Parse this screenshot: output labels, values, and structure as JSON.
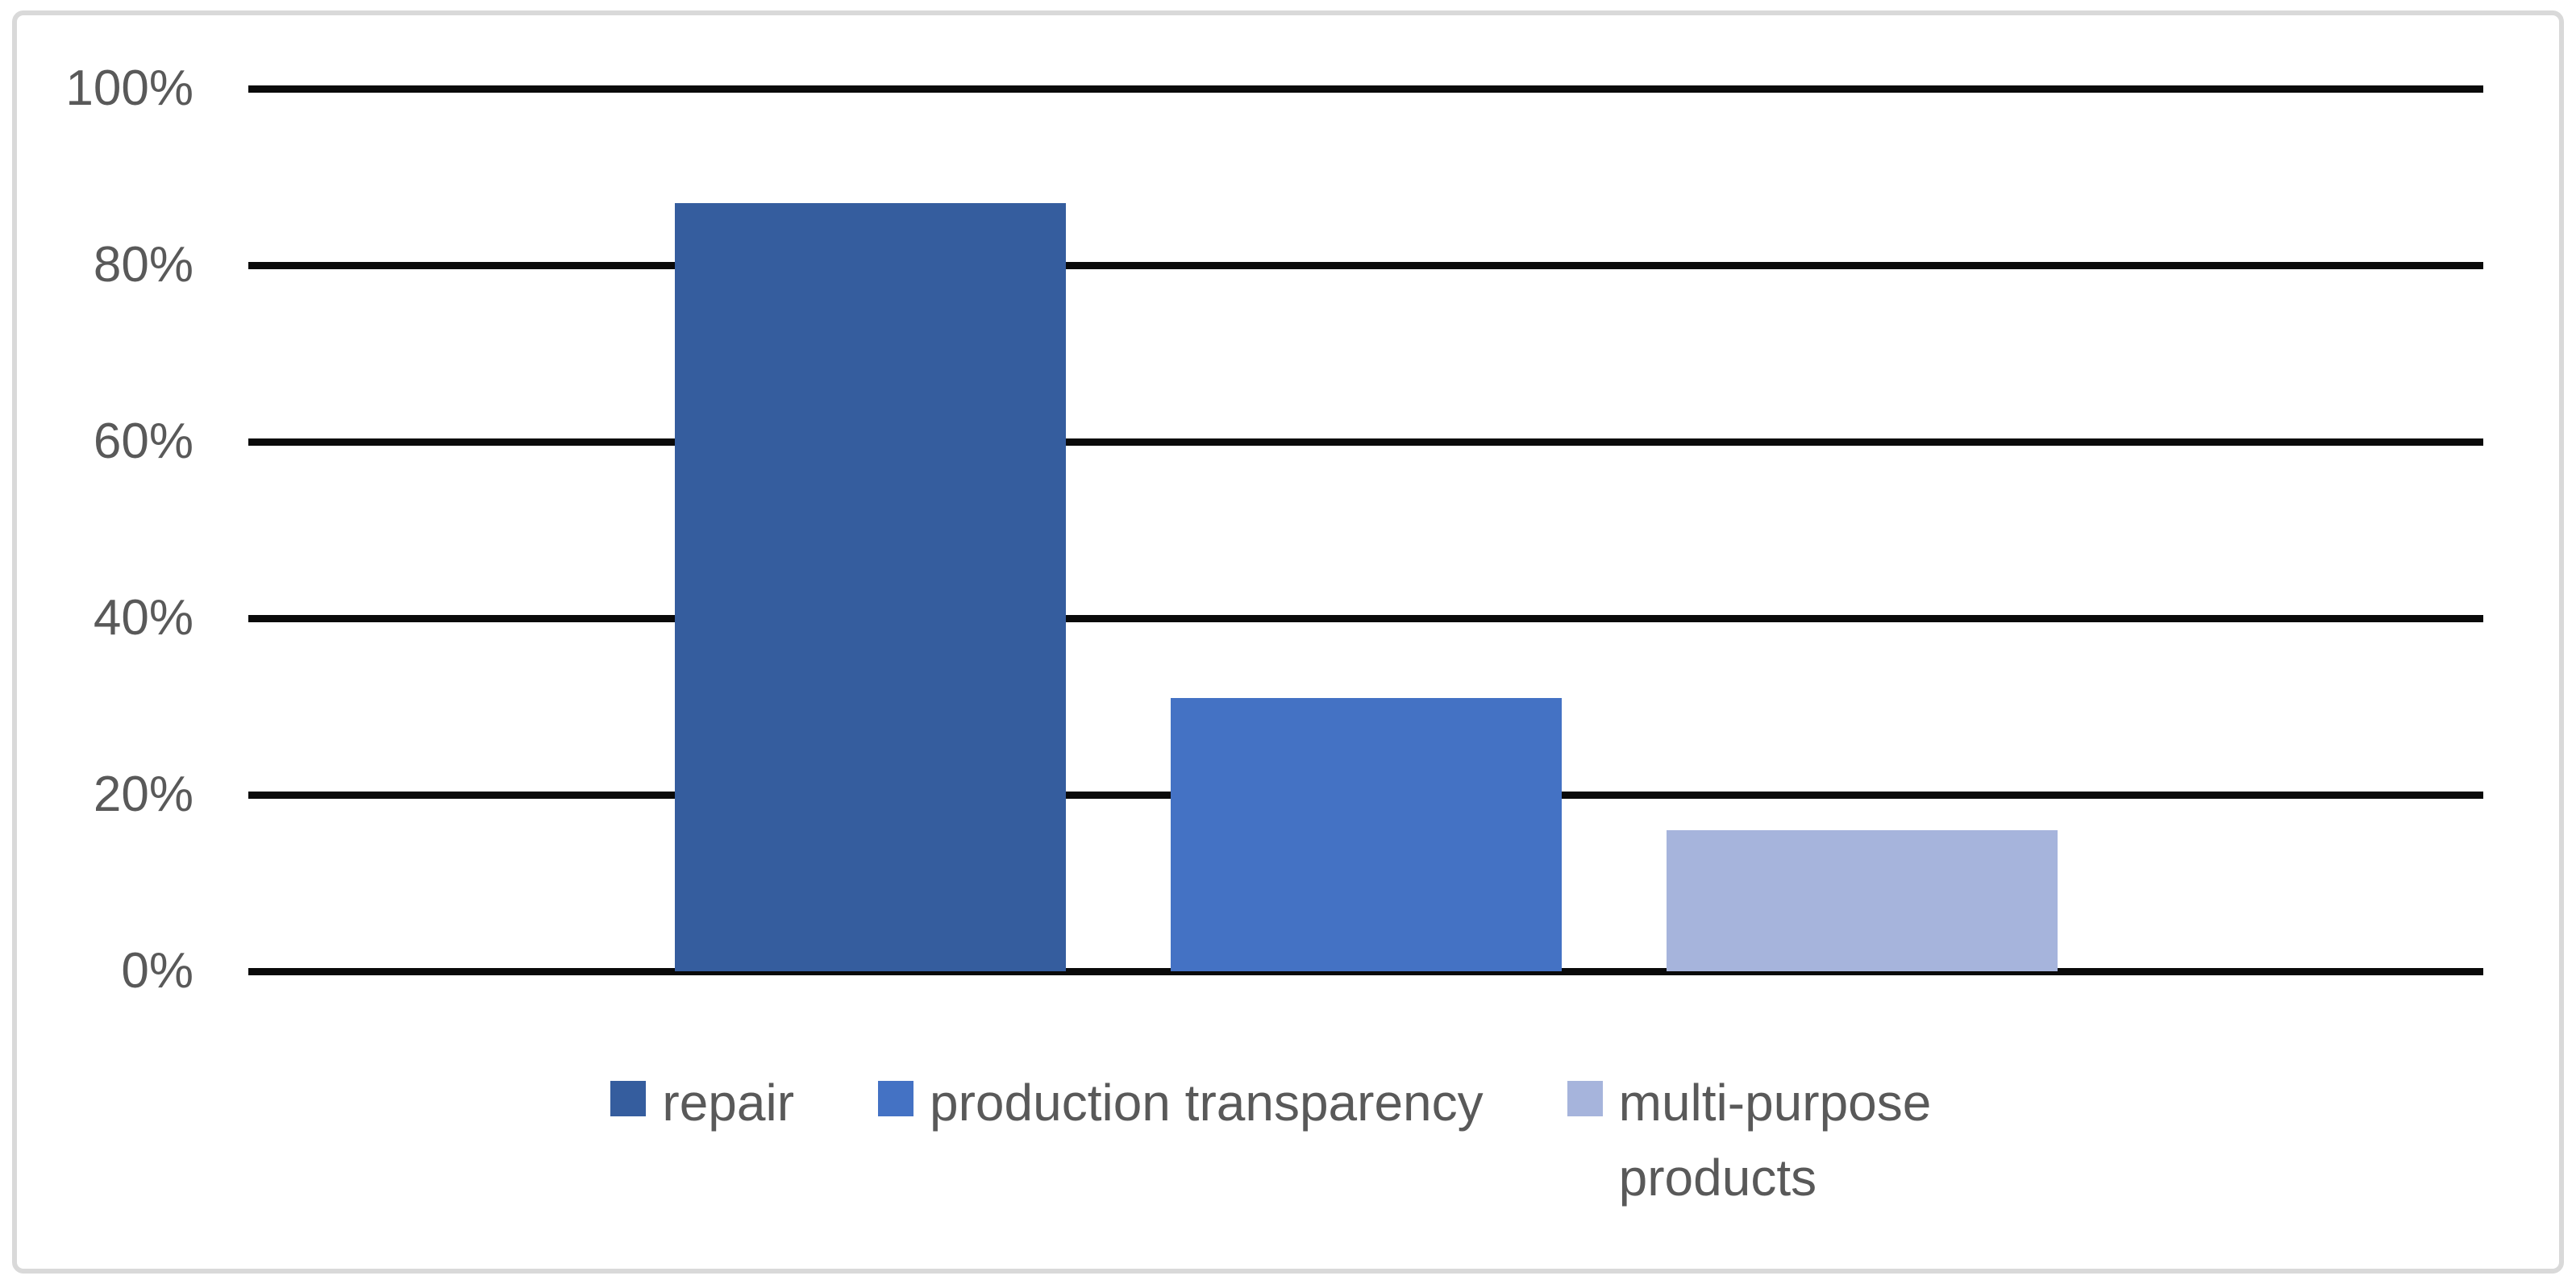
{
  "frame": {
    "background": "#FFFFFF",
    "border_color": "#D9D9D9"
  },
  "chart_data": {
    "type": "bar",
    "title": "",
    "xlabel": "",
    "ylabel": "",
    "categories": [
      "repair",
      "production transparency",
      "multi-purpose products"
    ],
    "values": [
      87,
      31,
      16
    ],
    "value_unit": "%",
    "bar_colors": [
      "#355D9E",
      "#4472C4",
      "#A6B4DC"
    ],
    "ylim": [
      0,
      100
    ],
    "yticks": [
      0,
      20,
      40,
      60,
      80,
      100
    ],
    "ytick_labels": [
      "0%",
      "20%",
      "40%",
      "60%",
      "80%",
      "100%"
    ],
    "grid": true,
    "gridline_color": "#0A0A0A",
    "axis_text_color": "#595959",
    "legend_position": "bottom",
    "legend": [
      {
        "label": "repair",
        "color": "#355D9E"
      },
      {
        "label": "production transparency",
        "color": "#4472C4"
      },
      {
        "label": "multi-purpose products",
        "color": "#A6B4DC"
      }
    ]
  }
}
